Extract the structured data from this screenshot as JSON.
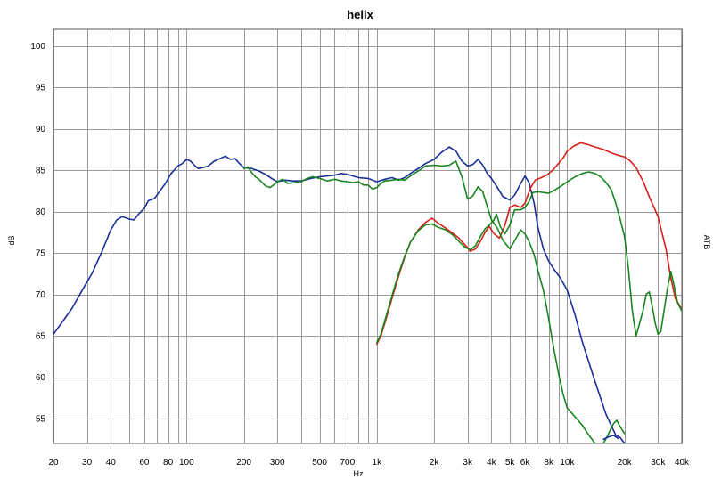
{
  "chart_data": {
    "type": "line",
    "title": "helix",
    "xlabel": "Hz",
    "ylabel": "dB",
    "ylabel_right": "ATB",
    "xscale": "log",
    "xlim": [
      20,
      40000
    ],
    "ylim": [
      52,
      102
    ],
    "grid": true,
    "x_ticks": [
      {
        "v": 20,
        "label": "20"
      },
      {
        "v": 30,
        "label": "30"
      },
      {
        "v": 40,
        "label": "40"
      },
      {
        "v": 60,
        "label": "60"
      },
      {
        "v": 80,
        "label": "80"
      },
      {
        "v": 100,
        "label": "100"
      },
      {
        "v": 200,
        "label": "200"
      },
      {
        "v": 300,
        "label": "300"
      },
      {
        "v": 500,
        "label": "500"
      },
      {
        "v": 700,
        "label": "700"
      },
      {
        "v": 1000,
        "label": "1k"
      },
      {
        "v": 2000,
        "label": "2k"
      },
      {
        "v": 3000,
        "label": "3k"
      },
      {
        "v": 4000,
        "label": "4k"
      },
      {
        "v": 5000,
        "label": "5k"
      },
      {
        "v": 6000,
        "label": "6k"
      },
      {
        "v": 8000,
        "label": "8k"
      },
      {
        "v": 10000,
        "label": "10k"
      },
      {
        "v": 20000,
        "label": "20k"
      },
      {
        "v": 30000,
        "label": "30k"
      },
      {
        "v": 40000,
        "label": "40k"
      }
    ],
    "x_grid": [
      20,
      30,
      40,
      50,
      60,
      70,
      80,
      90,
      100,
      200,
      300,
      400,
      500,
      600,
      700,
      800,
      900,
      1000,
      2000,
      3000,
      4000,
      5000,
      6000,
      7000,
      8000,
      9000,
      10000,
      20000,
      30000,
      40000
    ],
    "y_ticks": [
      55,
      60,
      65,
      70,
      75,
      80,
      85,
      90,
      95,
      100
    ],
    "series": [
      {
        "color": "#1a2f9c",
        "points": [
          [
            20,
            65.2
          ],
          [
            22,
            66.5
          ],
          [
            25,
            68.3
          ],
          [
            28,
            70.3
          ],
          [
            32,
            72.6
          ],
          [
            36,
            75.2
          ],
          [
            40,
            77.8
          ],
          [
            43,
            79.0
          ],
          [
            46,
            79.4
          ],
          [
            50,
            79.1
          ],
          [
            53,
            79.0
          ],
          [
            56,
            79.7
          ],
          [
            60,
            80.4
          ],
          [
            63,
            81.3
          ],
          [
            68,
            81.6
          ],
          [
            72,
            82.4
          ],
          [
            77,
            83.3
          ],
          [
            83,
            84.6
          ],
          [
            90,
            85.5
          ],
          [
            95,
            85.8
          ],
          [
            100,
            86.3
          ],
          [
            105,
            86.1
          ],
          [
            110,
            85.6
          ],
          [
            115,
            85.2
          ],
          [
            122,
            85.3
          ],
          [
            130,
            85.5
          ],
          [
            140,
            86.1
          ],
          [
            150,
            86.4
          ],
          [
            160,
            86.7
          ],
          [
            170,
            86.3
          ],
          [
            180,
            86.4
          ],
          [
            190,
            85.8
          ],
          [
            200,
            85.3
          ],
          [
            220,
            85.2
          ],
          [
            240,
            84.9
          ],
          [
            260,
            84.5
          ],
          [
            280,
            84.0
          ],
          [
            300,
            83.6
          ],
          [
            330,
            83.8
          ],
          [
            360,
            83.7
          ],
          [
            400,
            83.7
          ],
          [
            450,
            84.0
          ],
          [
            500,
            84.2
          ],
          [
            550,
            84.3
          ],
          [
            600,
            84.4
          ],
          [
            650,
            84.6
          ],
          [
            700,
            84.5
          ],
          [
            750,
            84.3
          ],
          [
            800,
            84.1
          ],
          [
            900,
            84.0
          ],
          [
            1000,
            83.6
          ],
          [
            1100,
            83.9
          ],
          [
            1200,
            84.1
          ],
          [
            1300,
            83.8
          ],
          [
            1400,
            84.1
          ],
          [
            1500,
            84.6
          ],
          [
            1650,
            85.2
          ],
          [
            1800,
            85.8
          ],
          [
            2000,
            86.3
          ],
          [
            2200,
            87.2
          ],
          [
            2400,
            87.8
          ],
          [
            2600,
            87.3
          ],
          [
            2800,
            86.1
          ],
          [
            3000,
            85.5
          ],
          [
            3200,
            85.7
          ],
          [
            3400,
            86.3
          ],
          [
            3600,
            85.6
          ],
          [
            3800,
            84.6
          ],
          [
            4000,
            84.0
          ],
          [
            4300,
            82.9
          ],
          [
            4600,
            81.8
          ],
          [
            5000,
            81.4
          ],
          [
            5300,
            82.0
          ],
          [
            5700,
            83.4
          ],
          [
            6000,
            84.3
          ],
          [
            6300,
            83.5
          ],
          [
            6700,
            81.0
          ],
          [
            7000,
            78.2
          ],
          [
            7500,
            75.5
          ],
          [
            8000,
            74.0
          ],
          [
            8600,
            72.9
          ],
          [
            9200,
            72.0
          ],
          [
            10000,
            70.5
          ],
          [
            11000,
            67.5
          ],
          [
            12000,
            64.3
          ],
          [
            14000,
            59.5
          ],
          [
            16000,
            55.5
          ],
          [
            18000,
            53.0
          ],
          [
            19000,
            52.7
          ],
          [
            20000,
            52.0
          ]
        ]
      },
      {
        "color": "#d7201a",
        "points": [
          [
            1000,
            64.0
          ],
          [
            1050,
            65.0
          ],
          [
            1100,
            66.5
          ],
          [
            1200,
            69.5
          ],
          [
            1300,
            72.2
          ],
          [
            1400,
            74.5
          ],
          [
            1500,
            76.3
          ],
          [
            1650,
            77.8
          ],
          [
            1800,
            78.7
          ],
          [
            1950,
            79.2
          ],
          [
            2100,
            78.6
          ],
          [
            2300,
            78.0
          ],
          [
            2500,
            77.4
          ],
          [
            2700,
            76.8
          ],
          [
            2900,
            76.0
          ],
          [
            3100,
            75.2
          ],
          [
            3300,
            75.5
          ],
          [
            3500,
            76.4
          ],
          [
            3700,
            77.5
          ],
          [
            3900,
            78.2
          ],
          [
            4100,
            77.4
          ],
          [
            4400,
            76.8
          ],
          [
            4700,
            78.3
          ],
          [
            5000,
            80.5
          ],
          [
            5300,
            80.8
          ],
          [
            5700,
            80.5
          ],
          [
            6000,
            81.0
          ],
          [
            6400,
            82.8
          ],
          [
            6800,
            83.8
          ],
          [
            7300,
            84.1
          ],
          [
            7800,
            84.4
          ],
          [
            8400,
            85.0
          ],
          [
            9000,
            85.8
          ],
          [
            9600,
            86.6
          ],
          [
            10000,
            87.3
          ],
          [
            10800,
            87.9
          ],
          [
            11800,
            88.3
          ],
          [
            12800,
            88.1
          ],
          [
            14000,
            87.8
          ],
          [
            15500,
            87.5
          ],
          [
            17000,
            87.1
          ],
          [
            18500,
            86.8
          ],
          [
            20000,
            86.6
          ],
          [
            21500,
            86.1
          ],
          [
            23000,
            85.3
          ],
          [
            25000,
            83.7
          ],
          [
            27000,
            81.8
          ],
          [
            30000,
            79.4
          ],
          [
            33000,
            75.5
          ],
          [
            35000,
            72.0
          ],
          [
            37000,
            69.5
          ],
          [
            40000,
            68.2
          ]
        ]
      },
      {
        "color": "#18861e",
        "points": [
          [
            200,
            85.2
          ],
          [
            210,
            85.4
          ],
          [
            220,
            84.7
          ],
          [
            230,
            84.2
          ],
          [
            240,
            83.9
          ],
          [
            250,
            83.5
          ],
          [
            260,
            83.1
          ],
          [
            275,
            82.9
          ],
          [
            290,
            83.3
          ],
          [
            300,
            83.6
          ],
          [
            320,
            83.9
          ],
          [
            340,
            83.4
          ],
          [
            370,
            83.5
          ],
          [
            400,
            83.6
          ],
          [
            430,
            84.0
          ],
          [
            460,
            84.2
          ],
          [
            500,
            84.0
          ],
          [
            550,
            83.7
          ],
          [
            600,
            83.9
          ],
          [
            650,
            83.7
          ],
          [
            700,
            83.6
          ],
          [
            750,
            83.5
          ],
          [
            800,
            83.6
          ],
          [
            850,
            83.2
          ],
          [
            900,
            83.2
          ],
          [
            950,
            82.7
          ],
          [
            1000,
            82.9
          ],
          [
            1050,
            83.4
          ],
          [
            1100,
            83.7
          ],
          [
            1200,
            83.8
          ],
          [
            1300,
            83.9
          ],
          [
            1400,
            83.8
          ],
          [
            1500,
            84.3
          ],
          [
            1650,
            84.9
          ],
          [
            1800,
            85.5
          ],
          [
            2000,
            85.6
          ],
          [
            2200,
            85.5
          ],
          [
            2400,
            85.6
          ],
          [
            2600,
            86.1
          ],
          [
            2800,
            84.2
          ],
          [
            3000,
            81.5
          ],
          [
            3200,
            81.9
          ],
          [
            3400,
            83.0
          ],
          [
            3600,
            82.4
          ],
          [
            3800,
            80.6
          ],
          [
            4000,
            79.0
          ],
          [
            4300,
            78.0
          ],
          [
            4600,
            76.5
          ],
          [
            5000,
            75.5
          ],
          [
            5300,
            76.5
          ],
          [
            5700,
            77.8
          ],
          [
            6000,
            77.3
          ],
          [
            6300,
            76.4
          ],
          [
            6700,
            74.8
          ],
          [
            7000,
            73.0
          ],
          [
            7500,
            70.5
          ],
          [
            8000,
            67.0
          ],
          [
            8500,
            63.5
          ],
          [
            9000,
            60.5
          ],
          [
            9500,
            58.0
          ],
          [
            10000,
            56.3
          ],
          [
            11000,
            55.2
          ],
          [
            12000,
            54.2
          ],
          [
            13000,
            53.0
          ],
          [
            14000,
            52.0
          ]
        ]
      },
      {
        "color": "#18861e",
        "points": [
          [
            1000,
            64.2
          ],
          [
            1050,
            65.2
          ],
          [
            1100,
            66.8
          ],
          [
            1200,
            69.8
          ],
          [
            1300,
            72.5
          ],
          [
            1400,
            74.6
          ],
          [
            1500,
            76.3
          ],
          [
            1650,
            77.7
          ],
          [
            1800,
            78.4
          ],
          [
            1950,
            78.5
          ],
          [
            2100,
            78.1
          ],
          [
            2300,
            77.8
          ],
          [
            2500,
            77.2
          ],
          [
            2700,
            76.4
          ],
          [
            2900,
            75.7
          ],
          [
            3100,
            75.4
          ],
          [
            3300,
            75.9
          ],
          [
            3500,
            77.0
          ],
          [
            3700,
            77.9
          ],
          [
            3900,
            78.4
          ],
          [
            4100,
            78.9
          ],
          [
            4250,
            79.7
          ],
          [
            4450,
            78.2
          ],
          [
            4700,
            77.3
          ],
          [
            5000,
            78.4
          ],
          [
            5300,
            80.2
          ],
          [
            5700,
            80.2
          ],
          [
            6000,
            80.5
          ],
          [
            6300,
            81.2
          ],
          [
            6600,
            82.3
          ],
          [
            7000,
            82.4
          ],
          [
            7500,
            82.3
          ],
          [
            8000,
            82.2
          ],
          [
            8600,
            82.6
          ],
          [
            9300,
            83.1
          ],
          [
            10000,
            83.6
          ],
          [
            11000,
            84.2
          ],
          [
            12000,
            84.6
          ],
          [
            13000,
            84.8
          ],
          [
            14000,
            84.6
          ],
          [
            15000,
            84.2
          ],
          [
            16000,
            83.5
          ],
          [
            17000,
            82.7
          ],
          [
            18000,
            81.0
          ],
          [
            19000,
            79.0
          ],
          [
            20000,
            77.0
          ],
          [
            21000,
            73.0
          ],
          [
            22000,
            68.0
          ],
          [
            23000,
            65.0
          ],
          [
            24000,
            66.5
          ],
          [
            25000,
            68.0
          ],
          [
            26000,
            70.0
          ],
          [
            27000,
            70.3
          ],
          [
            28000,
            68.5
          ],
          [
            29000,
            66.5
          ],
          [
            30000,
            65.2
          ],
          [
            31000,
            65.5
          ],
          [
            32000,
            67.5
          ],
          [
            33500,
            70.5
          ],
          [
            35000,
            72.8
          ],
          [
            36500,
            71.0
          ],
          [
            38000,
            69.0
          ],
          [
            40000,
            68.0
          ]
        ]
      },
      {
        "color": "#18861e",
        "points": [
          [
            15500,
            52.0
          ],
          [
            16500,
            53.2
          ],
          [
            17500,
            54.4
          ],
          [
            18200,
            54.8
          ],
          [
            19000,
            54.0
          ],
          [
            20000,
            53.2
          ]
        ]
      },
      {
        "color": "#1a2f9c",
        "points": [
          [
            15500,
            52.5
          ],
          [
            16500,
            52.8
          ],
          [
            17500,
            53.0
          ],
          [
            18500,
            52.6
          ]
        ]
      }
    ]
  }
}
